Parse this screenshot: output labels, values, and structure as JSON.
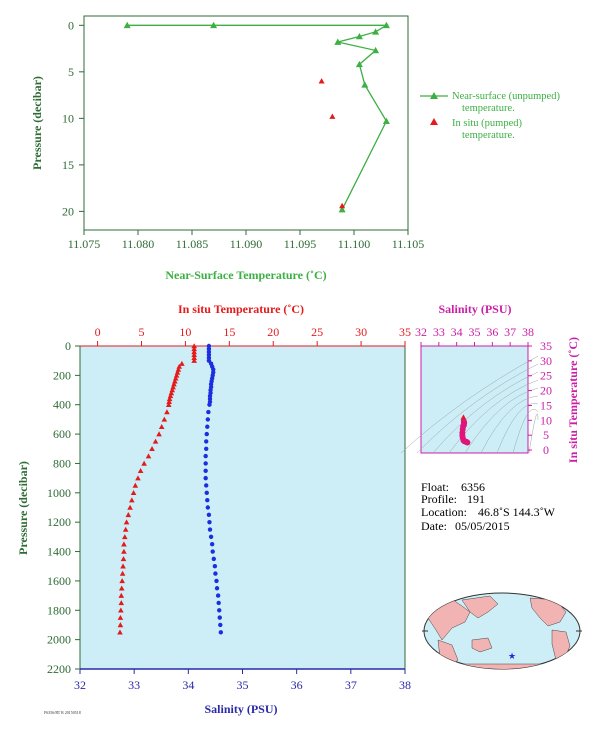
{
  "colors": {
    "near_surface": "#3cb043",
    "in_situ": "#e31b1b",
    "salinity": "#1b2fe0",
    "axis_green": "#2e6b35",
    "plot_bg": "#cdeef7",
    "magenta": "#cc1fa7",
    "blue_axis": "#2a2aa8"
  },
  "chart_data": [
    {
      "id": "near_surface_chart",
      "type": "line",
      "xlabel": "Near-Surface Temperature (˚C)",
      "ylabel": "Pressure (decibar)",
      "xlim": [
        11.075,
        11.105
      ],
      "ylim": [
        22,
        -1
      ],
      "x_ticks": [
        "11.075",
        "11.080",
        "11.085",
        "11.090",
        "11.095",
        "11.100",
        "11.105"
      ],
      "y_ticks": [
        "0",
        "5",
        "10",
        "15",
        "20"
      ],
      "series": [
        {
          "name": "Near-surface (unpumped) temperature.",
          "marker": "triangle",
          "points": [
            [
              11.079,
              0
            ],
            [
              11.087,
              0
            ],
            [
              11.103,
              0
            ],
            [
              11.102,
              0.7
            ],
            [
              11.1005,
              1.2
            ],
            [
              11.0985,
              1.8
            ],
            [
              11.102,
              2.7
            ],
            [
              11.1005,
              4.2
            ],
            [
              11.101,
              6.4
            ],
            [
              11.103,
              10.3
            ],
            [
              11.0989,
              19.8
            ]
          ]
        },
        {
          "name": "In situ (pumped) temperature.",
          "marker": "triangle",
          "points": [
            [
              11.097,
              6.0
            ],
            [
              11.098,
              9.8
            ],
            [
              11.0989,
              19.4
            ]
          ]
        }
      ],
      "legend": {
        "position": "right",
        "entries": [
          {
            "line1": "Near-surface (unpumped)",
            "line2": "temperature."
          },
          {
            "line1": "In situ (pumped)",
            "line2": "temperature."
          }
        ]
      }
    },
    {
      "id": "profile_chart",
      "type": "scatter",
      "top_xlabel": "In situ Temperature (˚C)",
      "bottom_xlabel": "Salinity (PSU)",
      "ylabel": "Pressure (decibar)",
      "temp_lim": [
        -2,
        35
      ],
      "sal_lim": [
        32,
        38
      ],
      "ylim": [
        2200,
        0
      ],
      "temp_ticks": [
        "0",
        "5",
        "10",
        "15",
        "20",
        "25",
        "30",
        "35"
      ],
      "sal_ticks": [
        "32",
        "33",
        "34",
        "35",
        "36",
        "37",
        "38"
      ],
      "y_ticks": [
        "0",
        "200",
        "400",
        "600",
        "800",
        "1000",
        "1200",
        "1400",
        "1600",
        "1800",
        "2000",
        "2200"
      ],
      "temperature": [
        [
          11.0,
          0
        ],
        [
          11.0,
          20
        ],
        [
          11.0,
          40
        ],
        [
          11.0,
          60
        ],
        [
          11.0,
          80
        ],
        [
          11.0,
          100
        ],
        [
          9.6,
          120
        ],
        [
          9.3,
          140
        ],
        [
          9.2,
          160
        ],
        [
          9.1,
          180
        ],
        [
          9.0,
          200
        ],
        [
          8.9,
          220
        ],
        [
          8.8,
          240
        ],
        [
          8.7,
          260
        ],
        [
          8.6,
          280
        ],
        [
          8.5,
          300
        ],
        [
          8.4,
          320
        ],
        [
          8.3,
          340
        ],
        [
          8.2,
          360
        ],
        [
          8.15,
          380
        ],
        [
          8.1,
          400
        ],
        [
          7.9,
          450
        ],
        [
          7.6,
          500
        ],
        [
          7.3,
          550
        ],
        [
          7.0,
          600
        ],
        [
          6.6,
          650
        ],
        [
          6.2,
          700
        ],
        [
          5.8,
          750
        ],
        [
          5.3,
          800
        ],
        [
          4.9,
          850
        ],
        [
          4.6,
          900
        ],
        [
          4.3,
          950
        ],
        [
          4.1,
          1000
        ],
        [
          3.9,
          1050
        ],
        [
          3.7,
          1100
        ],
        [
          3.5,
          1150
        ],
        [
          3.3,
          1200
        ],
        [
          3.2,
          1250
        ],
        [
          3.1,
          1300
        ],
        [
          3.0,
          1350
        ],
        [
          3.0,
          1400
        ],
        [
          2.95,
          1450
        ],
        [
          2.9,
          1500
        ],
        [
          2.85,
          1550
        ],
        [
          2.8,
          1600
        ],
        [
          2.75,
          1650
        ],
        [
          2.7,
          1700
        ],
        [
          2.7,
          1750
        ],
        [
          2.65,
          1800
        ],
        [
          2.6,
          1850
        ],
        [
          2.6,
          1900
        ],
        [
          2.55,
          1950
        ]
      ],
      "salinity": [
        [
          34.38,
          0
        ],
        [
          34.38,
          20
        ],
        [
          34.38,
          40
        ],
        [
          34.38,
          60
        ],
        [
          34.38,
          80
        ],
        [
          34.38,
          100
        ],
        [
          34.42,
          120
        ],
        [
          34.44,
          140
        ],
        [
          34.46,
          160
        ],
        [
          34.46,
          180
        ],
        [
          34.45,
          200
        ],
        [
          34.44,
          220
        ],
        [
          34.43,
          240
        ],
        [
          34.42,
          260
        ],
        [
          34.42,
          280
        ],
        [
          34.41,
          300
        ],
        [
          34.41,
          320
        ],
        [
          34.4,
          340
        ],
        [
          34.4,
          360
        ],
        [
          34.4,
          380
        ],
        [
          34.39,
          400
        ],
        [
          34.37,
          450
        ],
        [
          34.36,
          500
        ],
        [
          34.35,
          550
        ],
        [
          34.34,
          600
        ],
        [
          34.33,
          650
        ],
        [
          34.33,
          700
        ],
        [
          34.32,
          750
        ],
        [
          34.32,
          800
        ],
        [
          34.32,
          850
        ],
        [
          34.32,
          900
        ],
        [
          34.33,
          950
        ],
        [
          34.34,
          1000
        ],
        [
          34.35,
          1050
        ],
        [
          34.36,
          1100
        ],
        [
          34.38,
          1150
        ],
        [
          34.39,
          1200
        ],
        [
          34.4,
          1250
        ],
        [
          34.42,
          1300
        ],
        [
          34.44,
          1350
        ],
        [
          34.45,
          1400
        ],
        [
          34.47,
          1450
        ],
        [
          34.49,
          1500
        ],
        [
          34.5,
          1550
        ],
        [
          34.52,
          1600
        ],
        [
          34.53,
          1650
        ],
        [
          34.55,
          1700
        ],
        [
          34.56,
          1750
        ],
        [
          34.57,
          1800
        ],
        [
          34.58,
          1850
        ],
        [
          34.59,
          1900
        ],
        [
          34.6,
          1950
        ]
      ]
    },
    {
      "id": "ts_diagram",
      "type": "scatter",
      "xlabel": "Salinity (PSU)",
      "ylabel": "In situ Temperature (˚C)",
      "xlim": [
        32,
        38
      ],
      "ylim": [
        -1,
        35
      ],
      "x_ticks": [
        "32",
        "33",
        "34",
        "35",
        "36",
        "37",
        "38"
      ],
      "y_ticks": [
        "0",
        "5",
        "10",
        "15",
        "20",
        "25",
        "30",
        "35"
      ],
      "points": [
        [
          34.38,
          11.0
        ],
        [
          34.4,
          9.6
        ],
        [
          34.42,
          9.2
        ],
        [
          34.41,
          8.8
        ],
        [
          34.4,
          8.3
        ],
        [
          34.36,
          7.9
        ],
        [
          34.34,
          7.0
        ],
        [
          34.32,
          5.8
        ],
        [
          34.32,
          4.9
        ],
        [
          34.34,
          4.1
        ],
        [
          34.38,
          3.3
        ],
        [
          34.42,
          3.0
        ],
        [
          34.47,
          2.9
        ],
        [
          34.52,
          2.8
        ],
        [
          34.56,
          2.7
        ],
        [
          34.6,
          2.55
        ]
      ]
    }
  ],
  "float_info": {
    "float_label": "Float:",
    "float_value": "6356",
    "profile_label": "Profile:",
    "profile_value": "191",
    "location_label": "Location:",
    "location_value": "46.8˚S  144.3˚W",
    "date_label": "Date:",
    "date_value": "05/05/2015"
  },
  "footer": {
    "small_text": "F6356/RT R 20150518"
  },
  "map": {
    "marker_icon": "star-icon"
  }
}
